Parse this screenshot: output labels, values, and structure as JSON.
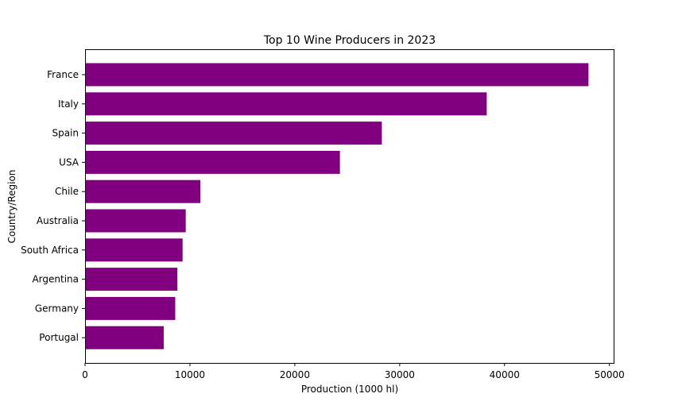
{
  "chart_data": {
    "type": "bar",
    "orientation": "horizontal",
    "title": "Top 10 Wine Producers in 2023",
    "xlabel": "Production (1000 hl)",
    "ylabel": "Country/Region",
    "categories": [
      "France",
      "Italy",
      "Spain",
      "USA",
      "Chile",
      "Australia",
      "South Africa",
      "Argentina",
      "Germany",
      "Portugal"
    ],
    "values": [
      48000,
      38300,
      28300,
      24300,
      11000,
      9600,
      9300,
      8800,
      8600,
      7500
    ],
    "xlim": [
      0,
      50400
    ],
    "xticks": [
      0,
      10000,
      20000,
      30000,
      40000,
      50000
    ],
    "bar_color": "#800080",
    "grid": false
  }
}
